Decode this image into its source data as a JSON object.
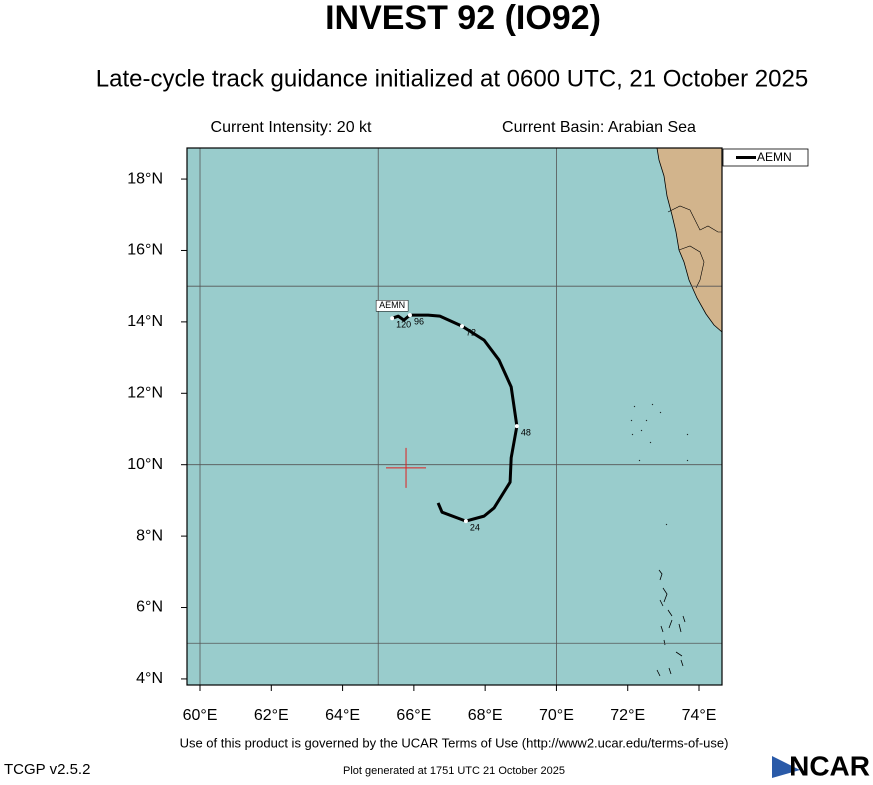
{
  "chart_data": {
    "type": "line",
    "title": "INVEST 92 (IO92)",
    "subtitle": "Late-cycle track guidance initialized at 0600 UTC, 21 October 2025",
    "annotations": {
      "intensity": "Current Intensity: 20 kt",
      "basin": "Current Basin: Arabian Sea"
    },
    "x": [
      66.68,
      66.79,
      67.46,
      67.97,
      68.25,
      68.7,
      68.73,
      68.89,
      68.73,
      68.39,
      67.97,
      67.35,
      66.73,
      66.4,
      65.89,
      65.72,
      65.56,
      65.39
    ],
    "series": [
      {
        "name": "AEMN",
        "color": "#000000",
        "values": [
          8.93,
          8.67,
          8.42,
          8.56,
          8.79,
          9.51,
          10.19,
          11.08,
          12.18,
          12.93,
          13.49,
          13.88,
          14.16,
          14.19,
          14.19,
          14.05,
          14.16,
          14.1
        ],
        "point_labels": [
          null,
          null,
          "24",
          null,
          null,
          null,
          null,
          "48",
          null,
          null,
          null,
          "72",
          null,
          null,
          "96",
          null,
          null,
          "120"
        ]
      }
    ],
    "current_position": {
      "lon": 65.78,
      "lat": 9.91
    },
    "xlim": [
      59.635,
      74.645
    ],
    "ylim": [
      3.83,
      18.87
    ],
    "xticks": [
      {
        "value": 60,
        "label": "60°E"
      },
      {
        "value": 62,
        "label": "62°E"
      },
      {
        "value": 64,
        "label": "64°E"
      },
      {
        "value": 66,
        "label": "66°E"
      },
      {
        "value": 68,
        "label": "68°E"
      },
      {
        "value": 70,
        "label": "70°E"
      },
      {
        "value": 72,
        "label": "72°E"
      },
      {
        "value": 74,
        "label": "74°E"
      }
    ],
    "yticks": [
      {
        "value": 4,
        "label": "4°N"
      },
      {
        "value": 6,
        "label": "6°N"
      },
      {
        "value": 8,
        "label": "8°N"
      },
      {
        "value": 10,
        "label": "10°N"
      },
      {
        "value": 12,
        "label": "12°N"
      },
      {
        "value": 14,
        "label": "14°N"
      },
      {
        "value": 16,
        "label": "16°N"
      },
      {
        "value": 18,
        "label": "18°N"
      }
    ],
    "grid_x": [
      60,
      65,
      70
    ],
    "grid_y": [
      5,
      10,
      15
    ],
    "legend": "upper right",
    "footer": {
      "terms": "Use of this product is governed by the UCAR Terms of Use (http://www2.ucar.edu/terms-of-use)",
      "generated": "Plot generated at 1751 UTC   21 October 2025",
      "version": "TCGP v2.5.2",
      "logo": "NCAR"
    }
  }
}
